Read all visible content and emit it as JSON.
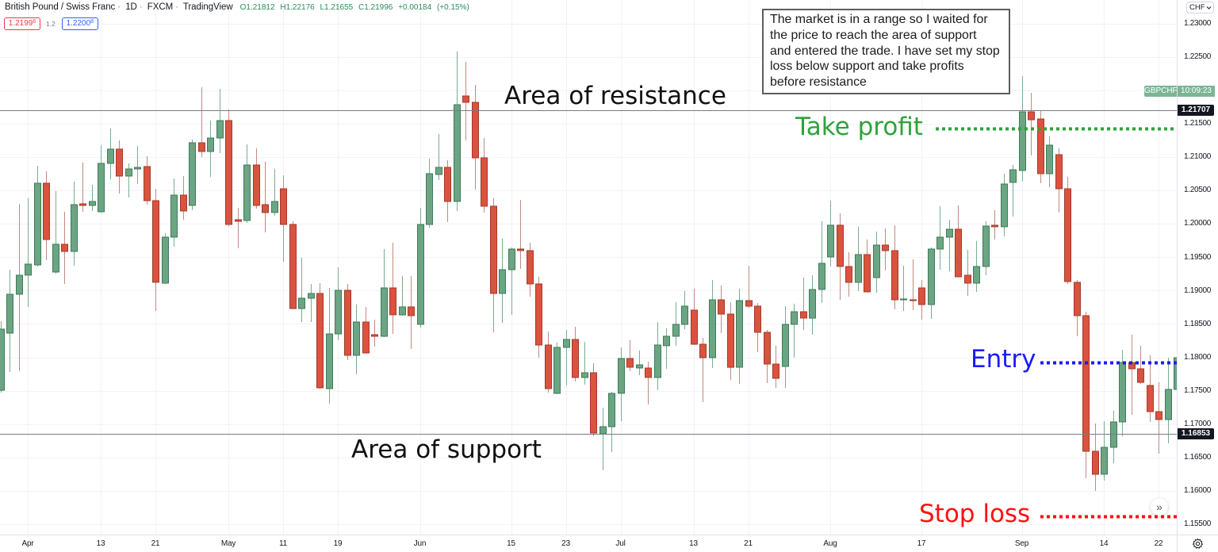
{
  "legend": {
    "symbol_name": "British Pound / Swiss Franc",
    "separator": "·",
    "interval": "1D",
    "exchange": "FXCM",
    "platform": "TradingView",
    "ohlc": {
      "o_label": "O",
      "o": "1.21812",
      "h_label": "H",
      "h": "1.22176",
      "l_label": "L",
      "l": "1.21655",
      "c_label": "C",
      "c": "1.21996",
      "change": "+0.00184",
      "change_pct": "(+0.15%)"
    }
  },
  "trade_buttons": {
    "sell_main": "1.2199",
    "sell_pip": "6",
    "spread": "1.2",
    "buy_main": "1.2200",
    "buy_pip": "8"
  },
  "price_axis": {
    "currency": "CHF",
    "symbol_badge": "GBPCHF",
    "countdown": "10:09:23"
  },
  "icons": {
    "scroll_right": "»",
    "currency_dropdown": "chevron-down-icon",
    "settings": "gear-icon"
  },
  "chart_data": {
    "type": "candlestick",
    "title": "British Pound / Swiss Franc · 1D · FXCM · TradingView",
    "xlabel": "",
    "ylabel": "CHF",
    "ylim": [
      1.1534,
      1.2336
    ],
    "grid": true,
    "current_price": 1.21996,
    "y_ticks": [
      "1.23000",
      "1.22500",
      "1.21500",
      "1.21000",
      "1.20500",
      "1.20000",
      "1.19500",
      "1.19000",
      "1.18500",
      "1.18000",
      "1.17500",
      "1.17000",
      "1.16500",
      "1.16000",
      "1.15500"
    ],
    "x_ticks": [
      {
        "label": "Apr",
        "at": "Apr 1"
      },
      {
        "label": "13",
        "at": "Apr 13"
      },
      {
        "label": "21",
        "at": "Apr 21"
      },
      {
        "label": "May",
        "at": "May 1"
      },
      {
        "label": "11",
        "at": "May 11"
      },
      {
        "label": "19",
        "at": "May 19"
      },
      {
        "label": "Jun",
        "at": "Jun 1"
      },
      {
        "label": "15",
        "at": "Jun 15"
      },
      {
        "label": "23",
        "at": "Jun 23"
      },
      {
        "label": "Jul",
        "at": "Jul 1"
      },
      {
        "label": "13",
        "at": "Jul 13"
      },
      {
        "label": "21",
        "at": "Jul 21"
      },
      {
        "label": "Aug",
        "at": "Aug 3"
      },
      {
        "label": "17",
        "at": "Aug 17"
      },
      {
        "label": "Sep",
        "at": "Sep 1"
      },
      {
        "label": "14",
        "at": "Sep 14"
      },
      {
        "label": "22",
        "at": "Sep 22"
      }
    ],
    "annotations": {
      "note": {
        "lines": [
          "The market is in a range so I waited for",
          "the price to reach the area of support",
          "and entered the trade. I have set my stop",
          "loss below support and take profits",
          "before resistance"
        ]
      },
      "resistance": {
        "label": "Area of resistance",
        "level": 1.21707,
        "level_label": "1.21707"
      },
      "support": {
        "label": "Area of support",
        "level": 1.16853,
        "level_label": "1.16853"
      },
      "take_profit": {
        "label": "Take profit",
        "level": 1.21433
      },
      "entry": {
        "label": "Entry",
        "level": 1.17923
      },
      "stop_loss": {
        "label": "Stop loss",
        "level": 1.15614
      }
    },
    "colors": {
      "up": "#6ba583",
      "up_border": "#3e7b57",
      "up_wick": "#7aad90",
      "down": "#d9533f",
      "down_border": "#a5392b",
      "down_wick": "#c28a82",
      "level_line": "#787b86",
      "grid": "#f0f3fa",
      "take_profit": "#2fa23a",
      "entry": "#1a1aff",
      "stop_loss": "#ff1010",
      "annotation_text": "#111111"
    },
    "columns": [
      "date",
      "open",
      "high",
      "low",
      "close"
    ],
    "candles": [
      [
        "Mar 27",
        1.17506,
        1.18542,
        1.17471,
        1.18423
      ],
      [
        "Mar 30",
        1.18363,
        1.19315,
        1.1778,
        1.18946
      ],
      [
        "Mar 31",
        1.18946,
        1.20303,
        1.17792,
        1.19232
      ],
      [
        "Apr 1",
        1.19232,
        1.20386,
        1.18756,
        1.19398
      ],
      [
        "Apr 2",
        1.19386,
        1.20874,
        1.19363,
        1.20612
      ],
      [
        "Apr 3",
        1.20612,
        1.20791,
        1.19458,
        1.19767
      ],
      [
        "Apr 6",
        1.19279,
        1.20493,
        1.19256,
        1.19696
      ],
      [
        "Apr 7",
        1.19696,
        1.20184,
        1.19101,
        1.19589
      ],
      [
        "Apr 8",
        1.19589,
        1.20636,
        1.19375,
        1.20291
      ],
      [
        "Apr 9",
        1.20303,
        1.20922,
        1.20184,
        1.20279
      ],
      [
        "Apr 10",
        1.20279,
        1.20588,
        1.20196,
        1.20338
      ],
      [
        "Apr 13",
        1.20184,
        1.21183,
        1.20172,
        1.2091
      ],
      [
        "Apr 14",
        1.2091,
        1.21433,
        1.20672,
        1.21124
      ],
      [
        "Apr 15",
        1.21124,
        1.21255,
        1.20457,
        1.20719
      ],
      [
        "Apr 16",
        1.20719,
        1.2091,
        1.20398,
        1.20826
      ],
      [
        "Apr 17",
        1.20826,
        1.21171,
        1.206,
        1.2085
      ],
      [
        "Apr 20",
        1.20862,
        1.21017,
        1.20291,
        1.2035
      ],
      [
        "Apr 21",
        1.2035,
        1.20529,
        1.18696,
        1.19125
      ],
      [
        "Apr 22",
        1.19113,
        1.19862,
        1.19101,
        1.19803
      ],
      [
        "Apr 23",
        1.19803,
        1.20684,
        1.1966,
        1.20434
      ],
      [
        "Apr 24",
        1.20434,
        1.20719,
        1.20065,
        1.20196
      ],
      [
        "Apr 27",
        1.20279,
        1.21267,
        1.20208,
        1.21219
      ],
      [
        "Apr 28",
        1.21219,
        1.22052,
        1.21005,
        1.21088
      ],
      [
        "Apr 29",
        1.21088,
        1.21552,
        1.20707,
        1.2129
      ],
      [
        "Apr 30",
        1.2129,
        1.22028,
        1.21064,
        1.21552
      ],
      [
        "May 1",
        1.21552,
        1.21719,
        1.1997,
        1.19993
      ],
      [
        "May 4",
        1.20065,
        1.20243,
        1.19636,
        1.20041
      ],
      [
        "May 5",
        1.20053,
        1.21195,
        1.20017,
        1.20886
      ],
      [
        "May 6",
        1.20886,
        1.21136,
        1.20231,
        1.20279
      ],
      [
        "May 7",
        1.20291,
        1.20933,
        1.19874,
        1.20172
      ],
      [
        "May 8",
        1.20172,
        1.20826,
        1.20124,
        1.20338
      ],
      [
        "May 11",
        1.20529,
        1.20731,
        1.19434,
        1.19993
      ],
      [
        "May 12",
        1.19993,
        1.20041,
        1.1872,
        1.18732
      ],
      [
        "May 13",
        1.18732,
        1.19494,
        1.1853,
        1.18887
      ],
      [
        "May 14",
        1.18887,
        1.19101,
        1.1853,
        1.18958
      ],
      [
        "May 15",
        1.18958,
        1.19113,
        1.1753,
        1.17542
      ],
      [
        "May 18",
        1.1753,
        1.19041,
        1.17304,
        1.18351
      ],
      [
        "May 19",
        1.18351,
        1.19351,
        1.18256,
        1.19006
      ],
      [
        "May 20",
        1.19006,
        1.19101,
        1.17958,
        1.1803
      ],
      [
        "May 21",
        1.1803,
        1.18791,
        1.17744,
        1.1853
      ],
      [
        "May 22",
        1.1853,
        1.18756,
        1.18054,
        1.18066
      ],
      [
        "May 25",
        1.18339,
        1.18565,
        1.18161,
        1.18315
      ],
      [
        "May 26",
        1.18315,
        1.19624,
        1.18304,
        1.19041
      ],
      [
        "May 27",
        1.19041,
        1.1972,
        1.18351,
        1.18637
      ],
      [
        "May 28",
        1.18637,
        1.1922,
        1.18625,
        1.18756
      ],
      [
        "May 29",
        1.18756,
        1.1922,
        1.18125,
        1.18625
      ],
      [
        "Jun 1",
        1.18494,
        1.20243,
        1.18446,
        1.19993
      ],
      [
        "Jun 2",
        1.19993,
        1.20981,
        1.19946,
        1.20755
      ],
      [
        "Jun 3",
        1.20743,
        1.2135,
        1.2066,
        1.2085
      ],
      [
        "Jun 4",
        1.2085,
        1.20957,
        1.20029,
        1.20338
      ],
      [
        "Jun 5",
        1.20338,
        1.22588,
        1.20196,
        1.2179
      ],
      [
        "Jun 8",
        1.21921,
        1.22433,
        1.21255,
        1.21826
      ],
      [
        "Jun 9",
        1.21826,
        1.22088,
        1.20517,
        1.20993
      ],
      [
        "Jun 10",
        1.20993,
        1.2129,
        1.20172,
        1.20267
      ],
      [
        "Jun 11",
        1.20267,
        1.20386,
        1.18375,
        1.18958
      ],
      [
        "Jun 12",
        1.18958,
        1.19779,
        1.18518,
        1.19315
      ],
      [
        "Jun 15",
        1.19315,
        1.19648,
        1.18637,
        1.19624
      ],
      [
        "Jun 16",
        1.19624,
        1.20362,
        1.19327,
        1.19601
      ],
      [
        "Jun 17",
        1.19601,
        1.1972,
        1.1891,
        1.19101
      ],
      [
        "Jun 18",
        1.19101,
        1.19208,
        1.17994,
        1.18185
      ],
      [
        "Jun 19",
        1.18185,
        1.18387,
        1.17471,
        1.1753
      ],
      [
        "Jun 22",
        1.17459,
        1.1822,
        1.17447,
        1.18149
      ],
      [
        "Jun 23",
        1.18149,
        1.18411,
        1.17578,
        1.18268
      ],
      [
        "Jun 24",
        1.18268,
        1.18458,
        1.17637,
        1.17697
      ],
      [
        "Jun 25",
        1.17697,
        1.18232,
        1.1759,
        1.17768
      ],
      [
        "Jun 26",
        1.17768,
        1.17911,
        1.16816,
        1.16864
      ],
      [
        "Jun 29",
        1.16852,
        1.17244,
        1.16304,
        1.16959
      ],
      [
        "Jun 30",
        1.16959,
        1.17482,
        1.16578,
        1.17459
      ],
      [
        "Jul 1",
        1.17459,
        1.18149,
        1.17042,
        1.17982
      ],
      [
        "Jul 2",
        1.17982,
        1.18256,
        1.17792,
        1.17851
      ],
      [
        "Jul 3",
        1.17839,
        1.18101,
        1.17732,
        1.17887
      ],
      [
        "Jul 6",
        1.17839,
        1.17935,
        1.17292,
        1.17697
      ],
      [
        "Jul 7",
        1.17697,
        1.1853,
        1.17506,
        1.18185
      ],
      [
        "Jul 8",
        1.18173,
        1.18434,
        1.17828,
        1.18315
      ],
      [
        "Jul 9",
        1.18315,
        1.18827,
        1.18173,
        1.18494
      ],
      [
        "Jul 10",
        1.18494,
        1.18994,
        1.18423,
        1.18768
      ],
      [
        "Jul 13",
        1.18708,
        1.19029,
        1.18185,
        1.18196
      ],
      [
        "Jul 14",
        1.18196,
        1.18292,
        1.17328,
        1.17994
      ],
      [
        "Jul 15",
        1.17994,
        1.1916,
        1.17839,
        1.18863
      ],
      [
        "Jul 16",
        1.18863,
        1.19077,
        1.18363,
        1.18649
      ],
      [
        "Jul 17",
        1.18649,
        1.18827,
        1.17661,
        1.17851
      ],
      [
        "Jul 20",
        1.17851,
        1.19029,
        1.17601,
        1.18851
      ],
      [
        "Jul 21",
        1.18851,
        1.19375,
        1.18744,
        1.18768
      ],
      [
        "Jul 22",
        1.18768,
        1.18815,
        1.18077,
        1.18375
      ],
      [
        "Jul 23",
        1.18375,
        1.18411,
        1.17613,
        1.17899
      ],
      [
        "Jul 24",
        1.17899,
        1.18173,
        1.17542,
        1.17685
      ],
      [
        "Jul 27",
        1.17863,
        1.18768,
        1.17542,
        1.18494
      ],
      [
        "Jul 28",
        1.18494,
        1.18803,
        1.17994,
        1.18684
      ],
      [
        "Jul 29",
        1.18684,
        1.19196,
        1.18411,
        1.18589
      ],
      [
        "Jul 30",
        1.18589,
        1.19232,
        1.18339,
        1.19018
      ],
      [
        "Jul 31",
        1.19018,
        1.20041,
        1.18815,
        1.1941
      ],
      [
        "Aug 3",
        1.19505,
        1.2035,
        1.19363,
        1.19981
      ],
      [
        "Aug 4",
        1.19981,
        1.2016,
        1.18863,
        1.19363
      ],
      [
        "Aug 5",
        1.19363,
        1.19577,
        1.1891,
        1.19125
      ],
      [
        "Aug 6",
        1.19125,
        1.19958,
        1.18994,
        1.19541
      ],
      [
        "Aug 7",
        1.19541,
        1.19767,
        1.18982,
        1.18982
      ],
      [
        "Aug 10",
        1.19196,
        1.19886,
        1.1897,
        1.19684
      ],
      [
        "Aug 11",
        1.19684,
        1.19934,
        1.19303,
        1.19601
      ],
      [
        "Aug 12",
        1.19601,
        1.19981,
        1.1872,
        1.18863
      ],
      [
        "Aug 13",
        1.18863,
        1.19375,
        1.18696,
        1.18875
      ],
      [
        "Aug 14",
        1.18863,
        1.1947,
        1.18708,
        1.18851
      ],
      [
        "Aug 17",
        1.19041,
        1.1916,
        1.18565,
        1.18791
      ],
      [
        "Aug 18",
        1.18791,
        1.19648,
        1.18577,
        1.19624
      ],
      [
        "Aug 19",
        1.19624,
        1.20267,
        1.19315,
        1.19803
      ],
      [
        "Aug 20",
        1.19803,
        1.20065,
        1.19291,
        1.19922
      ],
      [
        "Aug 21",
        1.19922,
        1.20279,
        1.19208,
        1.19208
      ],
      [
        "Aug 24",
        1.19232,
        1.19613,
        1.18922,
        1.19113
      ],
      [
        "Aug 25",
        1.19113,
        1.19743,
        1.18982,
        1.19363
      ],
      [
        "Aug 26",
        1.19363,
        1.20041,
        1.19232,
        1.1997
      ],
      [
        "Aug 27",
        1.19981,
        1.20208,
        1.19767,
        1.19958
      ],
      [
        "Aug 28",
        1.19958,
        1.20755,
        1.19815,
        1.206
      ],
      [
        "Aug 31",
        1.20624,
        1.20886,
        1.20112,
        1.20814
      ],
      [
        "Sep 1",
        1.20803,
        1.22219,
        1.20636,
        1.21683
      ],
      [
        "Sep 2",
        1.21683,
        1.21969,
        1.21029,
        1.21564
      ],
      [
        "Sep 3",
        1.21576,
        1.21695,
        1.20612,
        1.20755
      ],
      [
        "Sep 4",
        1.20755,
        1.21314,
        1.20553,
        1.21183
      ],
      [
        "Sep 7",
        1.21041,
        1.21136,
        1.20172,
        1.20529
      ],
      [
        "Sep 8",
        1.20529,
        1.20707,
        1.19101,
        1.19137
      ],
      [
        "Sep 9",
        1.19125,
        1.1916,
        1.18315,
        1.18625
      ],
      [
        "Sep 10",
        1.18625,
        1.18684,
        1.16185,
        1.1659
      ],
      [
        "Sep 11",
        1.1659,
        1.17006,
        1.15995,
        1.16245
      ],
      [
        "Sep 14",
        1.16245,
        1.17042,
        1.1615,
        1.16649
      ],
      [
        "Sep 15",
        1.16649,
        1.17197,
        1.16411,
        1.1703
      ],
      [
        "Sep 16",
        1.1703,
        1.18113,
        1.16816,
        1.17923
      ],
      [
        "Sep 17",
        1.17923,
        1.18339,
        1.17137,
        1.17828
      ],
      [
        "Sep 18",
        1.17828,
        1.18173,
        1.17601,
        1.17625
      ],
      [
        "Sep 21",
        1.17578,
        1.1803,
        1.1703,
        1.17185
      ],
      [
        "Sep 22",
        1.17185,
        1.17625,
        1.16554,
        1.17066
      ],
      [
        "Sep 23",
        1.17066,
        1.17994,
        1.16709,
        1.17518
      ],
      [
        "Sep 24",
        1.17518,
        1.1803,
        1.17506,
        1.17994
      ]
    ]
  }
}
